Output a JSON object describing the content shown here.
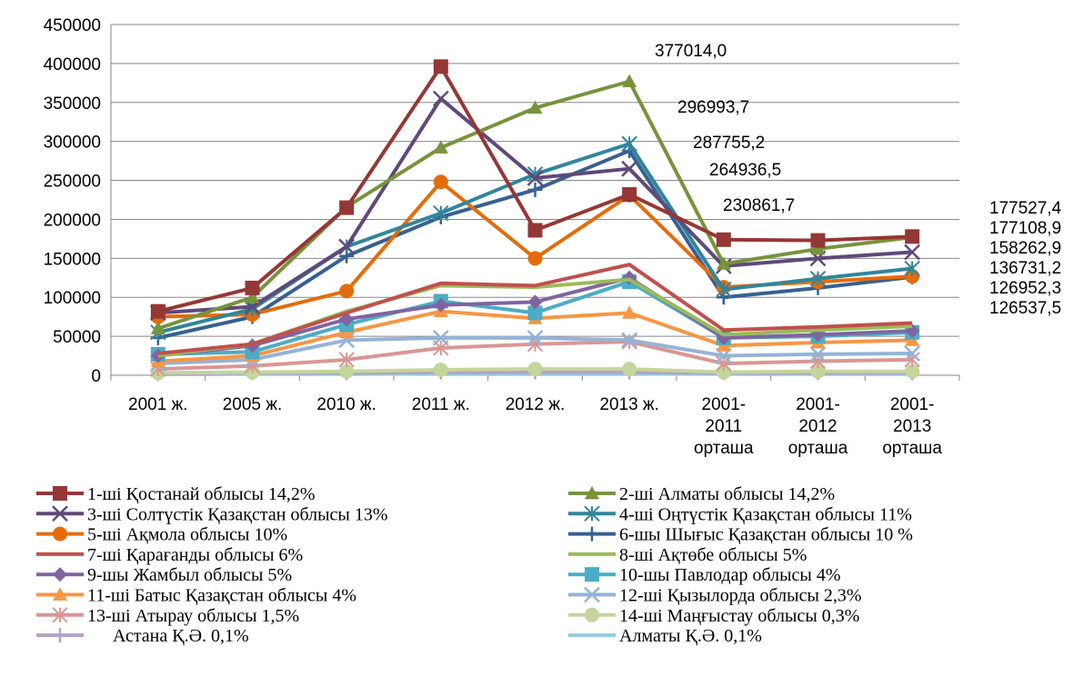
{
  "chart_data": {
    "type": "line",
    "categories": [
      "2001 ж.",
      "2005 ж.",
      "2010 ж.",
      "2011 ж.",
      "2012 ж.",
      "2013 ж.",
      "2001-\n2011\nорташа",
      "2001-\n2012\nорташа",
      "2001-\n2013\nорташа"
    ],
    "ylim": [
      0,
      450000
    ],
    "yticks": [
      0,
      50000,
      100000,
      150000,
      200000,
      250000,
      300000,
      350000,
      400000,
      450000
    ],
    "grid": true,
    "annotations": [
      "377014,0",
      "296993,7",
      "287755,2",
      "264936,5",
      "230861,7",
      "177527,4",
      "177108,9",
      "158262,9",
      "136731,2",
      "126952,3",
      "126537,5"
    ],
    "series": [
      {
        "name": "1-ші Қостанай облысы 14,2%",
        "color": "#953735",
        "marker": "square",
        "values": [
          82000,
          112000,
          215000,
          396000,
          186000,
          232000,
          174000,
          173000,
          178000
        ]
      },
      {
        "name": "2-ші Алматы облысы 14,2%",
        "color": "#77933c",
        "marker": "triangle",
        "values": [
          60000,
          100000,
          216000,
          292000,
          343000,
          377000,
          143000,
          162000,
          177000
        ]
      },
      {
        "name": "3-ші Солтүстік Қазақстан облысы 13%",
        "color": "#5f497a",
        "marker": "x",
        "values": [
          80000,
          88000,
          165000,
          355000,
          253000,
          265000,
          140000,
          150000,
          158000
        ]
      },
      {
        "name": "4-ші Оңтүстік Қазақстан облысы 11%",
        "color": "#31859c",
        "marker": "star",
        "values": [
          55000,
          85000,
          165000,
          208000,
          258000,
          297000,
          110000,
          124000,
          137000
        ]
      },
      {
        "name": "5-ші Ақмола облысы 10%",
        "color": "#e46c0a",
        "marker": "circle",
        "values": [
          75000,
          78000,
          108000,
          248000,
          150000,
          231000,
          113000,
          120000,
          127000
        ]
      },
      {
        "name": "6-шы Шығыс Қазақстан облысы 10 %",
        "color": "#376092",
        "marker": "plus",
        "values": [
          48000,
          75000,
          153000,
          203000,
          238000,
          288000,
          100000,
          112000,
          126000
        ]
      },
      {
        "name": "7-ші Қарағанды облысы 6%",
        "color": "#c0504d",
        "marker": "none",
        "values": [
          28000,
          40000,
          80000,
          118000,
          115000,
          142000,
          58000,
          62000,
          67000
        ]
      },
      {
        "name": "8-ші Ақтөбе облысы 5%",
        "color": "#9bbb59",
        "marker": "none",
        "values": [
          25000,
          40000,
          82000,
          115000,
          113000,
          123000,
          52000,
          58000,
          63000
        ]
      },
      {
        "name": "9-шы Жамбыл облысы 5%",
        "color": "#8064a2",
        "marker": "diamond",
        "values": [
          25000,
          38000,
          72000,
          90000,
          94000,
          125000,
          48000,
          52000,
          57000
        ]
      },
      {
        "name": "10-шы Павлодар облысы 4%",
        "color": "#4bacc6",
        "marker": "square",
        "values": [
          27000,
          30000,
          65000,
          95000,
          80000,
          120000,
          48000,
          50000,
          55000
        ]
      },
      {
        "name": "11-ші Батыс Қазақстан облысы 4%",
        "color": "#f79646",
        "marker": "triangle",
        "values": [
          18000,
          25000,
          55000,
          82000,
          73000,
          80000,
          38000,
          42000,
          45000
        ]
      },
      {
        "name": "12-ші Қызылорда облысы 2,3%",
        "color": "#95b3d7",
        "marker": "x",
        "values": [
          15000,
          20000,
          45000,
          48000,
          48000,
          45000,
          25000,
          27000,
          28000
        ]
      },
      {
        "name": "13-ші Атырау облысы 1,5%",
        "color": "#d99694",
        "marker": "star",
        "values": [
          8000,
          12000,
          20000,
          35000,
          40000,
          43000,
          15000,
          18000,
          20000
        ]
      },
      {
        "name": "14-ші Маңғыстау облысы 0,3%",
        "color": "#c3d69b",
        "marker": "circle",
        "values": [
          3000,
          4000,
          5000,
          7000,
          8000,
          8000,
          4000,
          5000,
          5000
        ]
      },
      {
        "name": "Астана Қ.Ә. 0,1%",
        "color": "#b3a2c7",
        "marker": "plus",
        "values": [
          2000,
          3000,
          3000,
          4000,
          4000,
          4000,
          3000,
          3000,
          3000
        ]
      },
      {
        "name": "Алматы Қ.Ә. 0,1%",
        "color": "#93cddd",
        "marker": "none",
        "values": [
          1000,
          1500,
          1500,
          2000,
          2000,
          2000,
          1500,
          1500,
          1500
        ]
      }
    ]
  }
}
